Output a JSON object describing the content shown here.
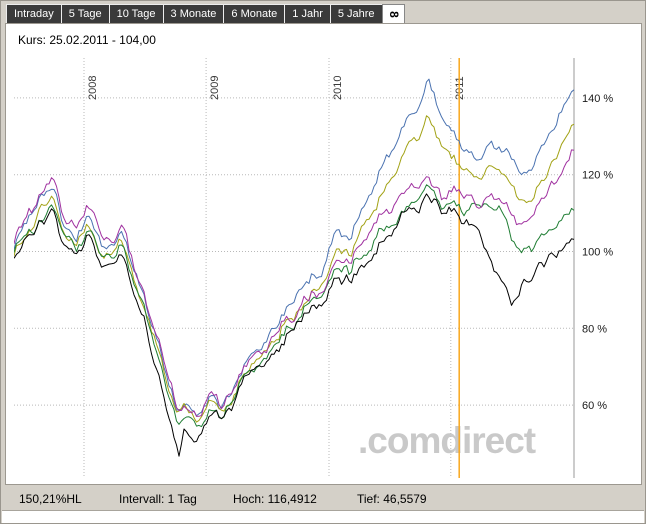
{
  "tabs": [
    {
      "label": "Intraday"
    },
    {
      "label": "5 Tage"
    },
    {
      "label": "10 Tage"
    },
    {
      "label": "3 Monate"
    },
    {
      "label": "6 Monate"
    },
    {
      "label": "1 Jahr"
    },
    {
      "label": "5 Jahre"
    },
    {
      "label": "8",
      "selected": true
    }
  ],
  "kurs_text": "Kurs: 25.02.2011 - 104,00",
  "watermark": ".comdirect",
  "statusbar": {
    "range": "150,21%HL",
    "interval": "Intervall: 1 Tag",
    "high": "Hoch: 116,4912",
    "low": "Tief: 46,5579"
  },
  "chart_data": {
    "type": "line",
    "title": "",
    "xlabel": "",
    "ylabel": "%",
    "grid": true,
    "legend_position": "none",
    "ylim": [
      41,
      150.4
    ],
    "y_ticks": [
      {
        "value": 140,
        "label": "140 %"
      },
      {
        "value": 120,
        "label": "120 %"
      },
      {
        "value": 100,
        "label": "100 %"
      },
      {
        "value": 80,
        "label": "80 %"
      },
      {
        "value": 60,
        "label": "60 %"
      }
    ],
    "x_gridlines": [
      {
        "label": "2008",
        "pos": 0.125
      },
      {
        "label": "2009",
        "pos": 0.343
      },
      {
        "label": "2010",
        "pos": 0.5625
      },
      {
        "label": "2011",
        "pos": 0.78
      }
    ],
    "date_marker": {
      "pos": 0.795,
      "color": "#f9a71d"
    },
    "series": [
      {
        "name": "blue",
        "color": "#4a72b0",
        "keypoints": [
          [
            0,
            101
          ],
          [
            0.03,
            108
          ],
          [
            0.05,
            115
          ],
          [
            0.07,
            117
          ],
          [
            0.09,
            106
          ],
          [
            0.11,
            103
          ],
          [
            0.13,
            109
          ],
          [
            0.16,
            99
          ],
          [
            0.19,
            105
          ],
          [
            0.21,
            96
          ],
          [
            0.23,
            88
          ],
          [
            0.25,
            80
          ],
          [
            0.27,
            68
          ],
          [
            0.29,
            58
          ],
          [
            0.31,
            60
          ],
          [
            0.33,
            57
          ],
          [
            0.35,
            62
          ],
          [
            0.37,
            59
          ],
          [
            0.4,
            67
          ],
          [
            0.43,
            74
          ],
          [
            0.46,
            80
          ],
          [
            0.49,
            86
          ],
          [
            0.52,
            91
          ],
          [
            0.55,
            97
          ],
          [
            0.58,
            106
          ],
          [
            0.6,
            103
          ],
          [
            0.62,
            112
          ],
          [
            0.645,
            118
          ],
          [
            0.67,
            126
          ],
          [
            0.7,
            133
          ],
          [
            0.72,
            138
          ],
          [
            0.74,
            146
          ],
          [
            0.755,
            138
          ],
          [
            0.77,
            133
          ],
          [
            0.79,
            130
          ],
          [
            0.81,
            126
          ],
          [
            0.83,
            124
          ],
          [
            0.85,
            129
          ],
          [
            0.87,
            126
          ],
          [
            0.89,
            124
          ],
          [
            0.91,
            120
          ],
          [
            0.93,
            124
          ],
          [
            0.955,
            130
          ],
          [
            0.98,
            137
          ],
          [
            1,
            142
          ]
        ]
      },
      {
        "name": "olive",
        "color": "#a2a215",
        "keypoints": [
          [
            0,
            100
          ],
          [
            0.03,
            106
          ],
          [
            0.05,
            112
          ],
          [
            0.07,
            114
          ],
          [
            0.09,
            104
          ],
          [
            0.11,
            101
          ],
          [
            0.13,
            107
          ],
          [
            0.16,
            97
          ],
          [
            0.19,
            103
          ],
          [
            0.21,
            94
          ],
          [
            0.23,
            86
          ],
          [
            0.25,
            78
          ],
          [
            0.27,
            66
          ],
          [
            0.29,
            57
          ],
          [
            0.31,
            59
          ],
          [
            0.33,
            56
          ],
          [
            0.35,
            61
          ],
          [
            0.37,
            58
          ],
          [
            0.4,
            65
          ],
          [
            0.43,
            72
          ],
          [
            0.46,
            78
          ],
          [
            0.49,
            83
          ],
          [
            0.52,
            88
          ],
          [
            0.55,
            93
          ],
          [
            0.58,
            101
          ],
          [
            0.6,
            99
          ],
          [
            0.62,
            107
          ],
          [
            0.645,
            112
          ],
          [
            0.67,
            119
          ],
          [
            0.7,
            126
          ],
          [
            0.72,
            130
          ],
          [
            0.74,
            137
          ],
          [
            0.755,
            130
          ],
          [
            0.77,
            126
          ],
          [
            0.79,
            123
          ],
          [
            0.81,
            120
          ],
          [
            0.83,
            118
          ],
          [
            0.85,
            122
          ],
          [
            0.87,
            120
          ],
          [
            0.89,
            117
          ],
          [
            0.91,
            113
          ],
          [
            0.93,
            117
          ],
          [
            0.955,
            122
          ],
          [
            0.98,
            128
          ],
          [
            1,
            133
          ]
        ]
      },
      {
        "name": "green",
        "color": "#1f7d33",
        "keypoints": [
          [
            0,
            100
          ],
          [
            0.03,
            105
          ],
          [
            0.05,
            109
          ],
          [
            0.07,
            112
          ],
          [
            0.09,
            103
          ],
          [
            0.11,
            100
          ],
          [
            0.13,
            105
          ],
          [
            0.16,
            96
          ],
          [
            0.19,
            101
          ],
          [
            0.21,
            92
          ],
          [
            0.23,
            84
          ],
          [
            0.25,
            76
          ],
          [
            0.27,
            65
          ],
          [
            0.29,
            56
          ],
          [
            0.31,
            58
          ],
          [
            0.33,
            55
          ],
          [
            0.35,
            60
          ],
          [
            0.37,
            57
          ],
          [
            0.4,
            64
          ],
          [
            0.43,
            70
          ],
          [
            0.46,
            76
          ],
          [
            0.49,
            81
          ],
          [
            0.52,
            85
          ],
          [
            0.55,
            89
          ],
          [
            0.58,
            96
          ],
          [
            0.6,
            94
          ],
          [
            0.62,
            100
          ],
          [
            0.645,
            104
          ],
          [
            0.67,
            108
          ],
          [
            0.7,
            112
          ],
          [
            0.72,
            114
          ],
          [
            0.74,
            118
          ],
          [
            0.755,
            114
          ],
          [
            0.77,
            111
          ],
          [
            0.79,
            112
          ],
          [
            0.81,
            110
          ],
          [
            0.83,
            111
          ],
          [
            0.85,
            113
          ],
          [
            0.87,
            110
          ],
          [
            0.89,
            103
          ],
          [
            0.91,
            100
          ],
          [
            0.93,
            102
          ],
          [
            0.955,
            104
          ],
          [
            0.98,
            107
          ],
          [
            1,
            110
          ]
        ]
      },
      {
        "name": "magenta",
        "color": "#a032a0",
        "keypoints": [
          [
            0,
            103
          ],
          [
            0.03,
            110
          ],
          [
            0.05,
            116
          ],
          [
            0.07,
            118
          ],
          [
            0.09,
            107
          ],
          [
            0.11,
            105
          ],
          [
            0.13,
            112
          ],
          [
            0.16,
            101
          ],
          [
            0.19,
            107
          ],
          [
            0.21,
            97
          ],
          [
            0.23,
            89
          ],
          [
            0.25,
            81
          ],
          [
            0.27,
            69
          ],
          [
            0.29,
            59
          ],
          [
            0.31,
            61
          ],
          [
            0.33,
            58
          ],
          [
            0.35,
            63
          ],
          [
            0.37,
            60
          ],
          [
            0.4,
            67
          ],
          [
            0.43,
            73
          ],
          [
            0.46,
            78
          ],
          [
            0.49,
            83
          ],
          [
            0.52,
            87
          ],
          [
            0.55,
            91
          ],
          [
            0.58,
            98
          ],
          [
            0.6,
            96
          ],
          [
            0.62,
            103
          ],
          [
            0.645,
            108
          ],
          [
            0.67,
            112
          ],
          [
            0.7,
            116
          ],
          [
            0.72,
            118
          ],
          [
            0.74,
            120
          ],
          [
            0.755,
            116
          ],
          [
            0.77,
            113
          ],
          [
            0.79,
            115
          ],
          [
            0.81,
            113
          ],
          [
            0.83,
            111
          ],
          [
            0.85,
            115
          ],
          [
            0.87,
            112
          ],
          [
            0.89,
            109
          ],
          [
            0.91,
            107
          ],
          [
            0.93,
            111
          ],
          [
            0.955,
            116
          ],
          [
            0.98,
            121
          ],
          [
            1,
            126
          ]
        ]
      },
      {
        "name": "black",
        "color": "#000000",
        "keypoints": [
          [
            0,
            100
          ],
          [
            0.03,
            104
          ],
          [
            0.05,
            108
          ],
          [
            0.07,
            111
          ],
          [
            0.09,
            101
          ],
          [
            0.11,
            98
          ],
          [
            0.13,
            104
          ],
          [
            0.16,
            94
          ],
          [
            0.19,
            99
          ],
          [
            0.21,
            90
          ],
          [
            0.23,
            82
          ],
          [
            0.25,
            72
          ],
          [
            0.27,
            60
          ],
          [
            0.285,
            51
          ],
          [
            0.295,
            47
          ],
          [
            0.305,
            54
          ],
          [
            0.32,
            50
          ],
          [
            0.33,
            53
          ],
          [
            0.35,
            58
          ],
          [
            0.37,
            55
          ],
          [
            0.4,
            63
          ],
          [
            0.43,
            69
          ],
          [
            0.46,
            74
          ],
          [
            0.49,
            79
          ],
          [
            0.52,
            83
          ],
          [
            0.55,
            87
          ],
          [
            0.58,
            94
          ],
          [
            0.6,
            92
          ],
          [
            0.62,
            98
          ],
          [
            0.645,
            102
          ],
          [
            0.67,
            106
          ],
          [
            0.7,
            110
          ],
          [
            0.72,
            112
          ],
          [
            0.74,
            116
          ],
          [
            0.755,
            112
          ],
          [
            0.77,
            108
          ],
          [
            0.79,
            110
          ],
          [
            0.81,
            107
          ],
          [
            0.83,
            105
          ],
          [
            0.85,
            98
          ],
          [
            0.87,
            92
          ],
          [
            0.89,
            87
          ],
          [
            0.91,
            93
          ],
          [
            0.93,
            95
          ],
          [
            0.955,
            98
          ],
          [
            0.98,
            101
          ],
          [
            1,
            104
          ]
        ]
      }
    ]
  }
}
